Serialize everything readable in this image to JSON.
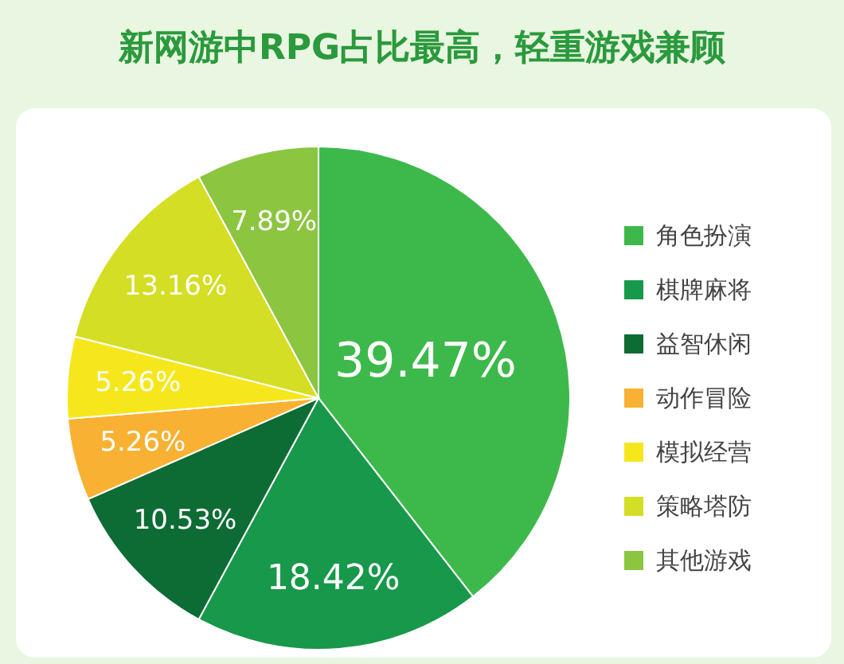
{
  "chart_data": {
    "type": "pie",
    "title": "新网游中RPG占比最高，轻重游戏兼顾",
    "categories": [
      "角色扮演",
      "棋牌麻将",
      "益智休闲",
      "动作冒险",
      "模拟经营",
      "策略塔防",
      "其他游戏"
    ],
    "values": [
      39.47,
      18.42,
      10.53,
      5.26,
      5.26,
      13.16,
      7.89
    ],
    "value_labels": [
      "39.47%",
      "18.42%",
      "10.53%",
      "5.26%",
      "5.26%",
      "13.16%",
      "7.89%"
    ],
    "colors": [
      "#3db94b",
      "#17984a",
      "#0d6b34",
      "#f8b133",
      "#f6e71d",
      "#d4de24",
      "#8cc540"
    ],
    "legend": "right"
  }
}
